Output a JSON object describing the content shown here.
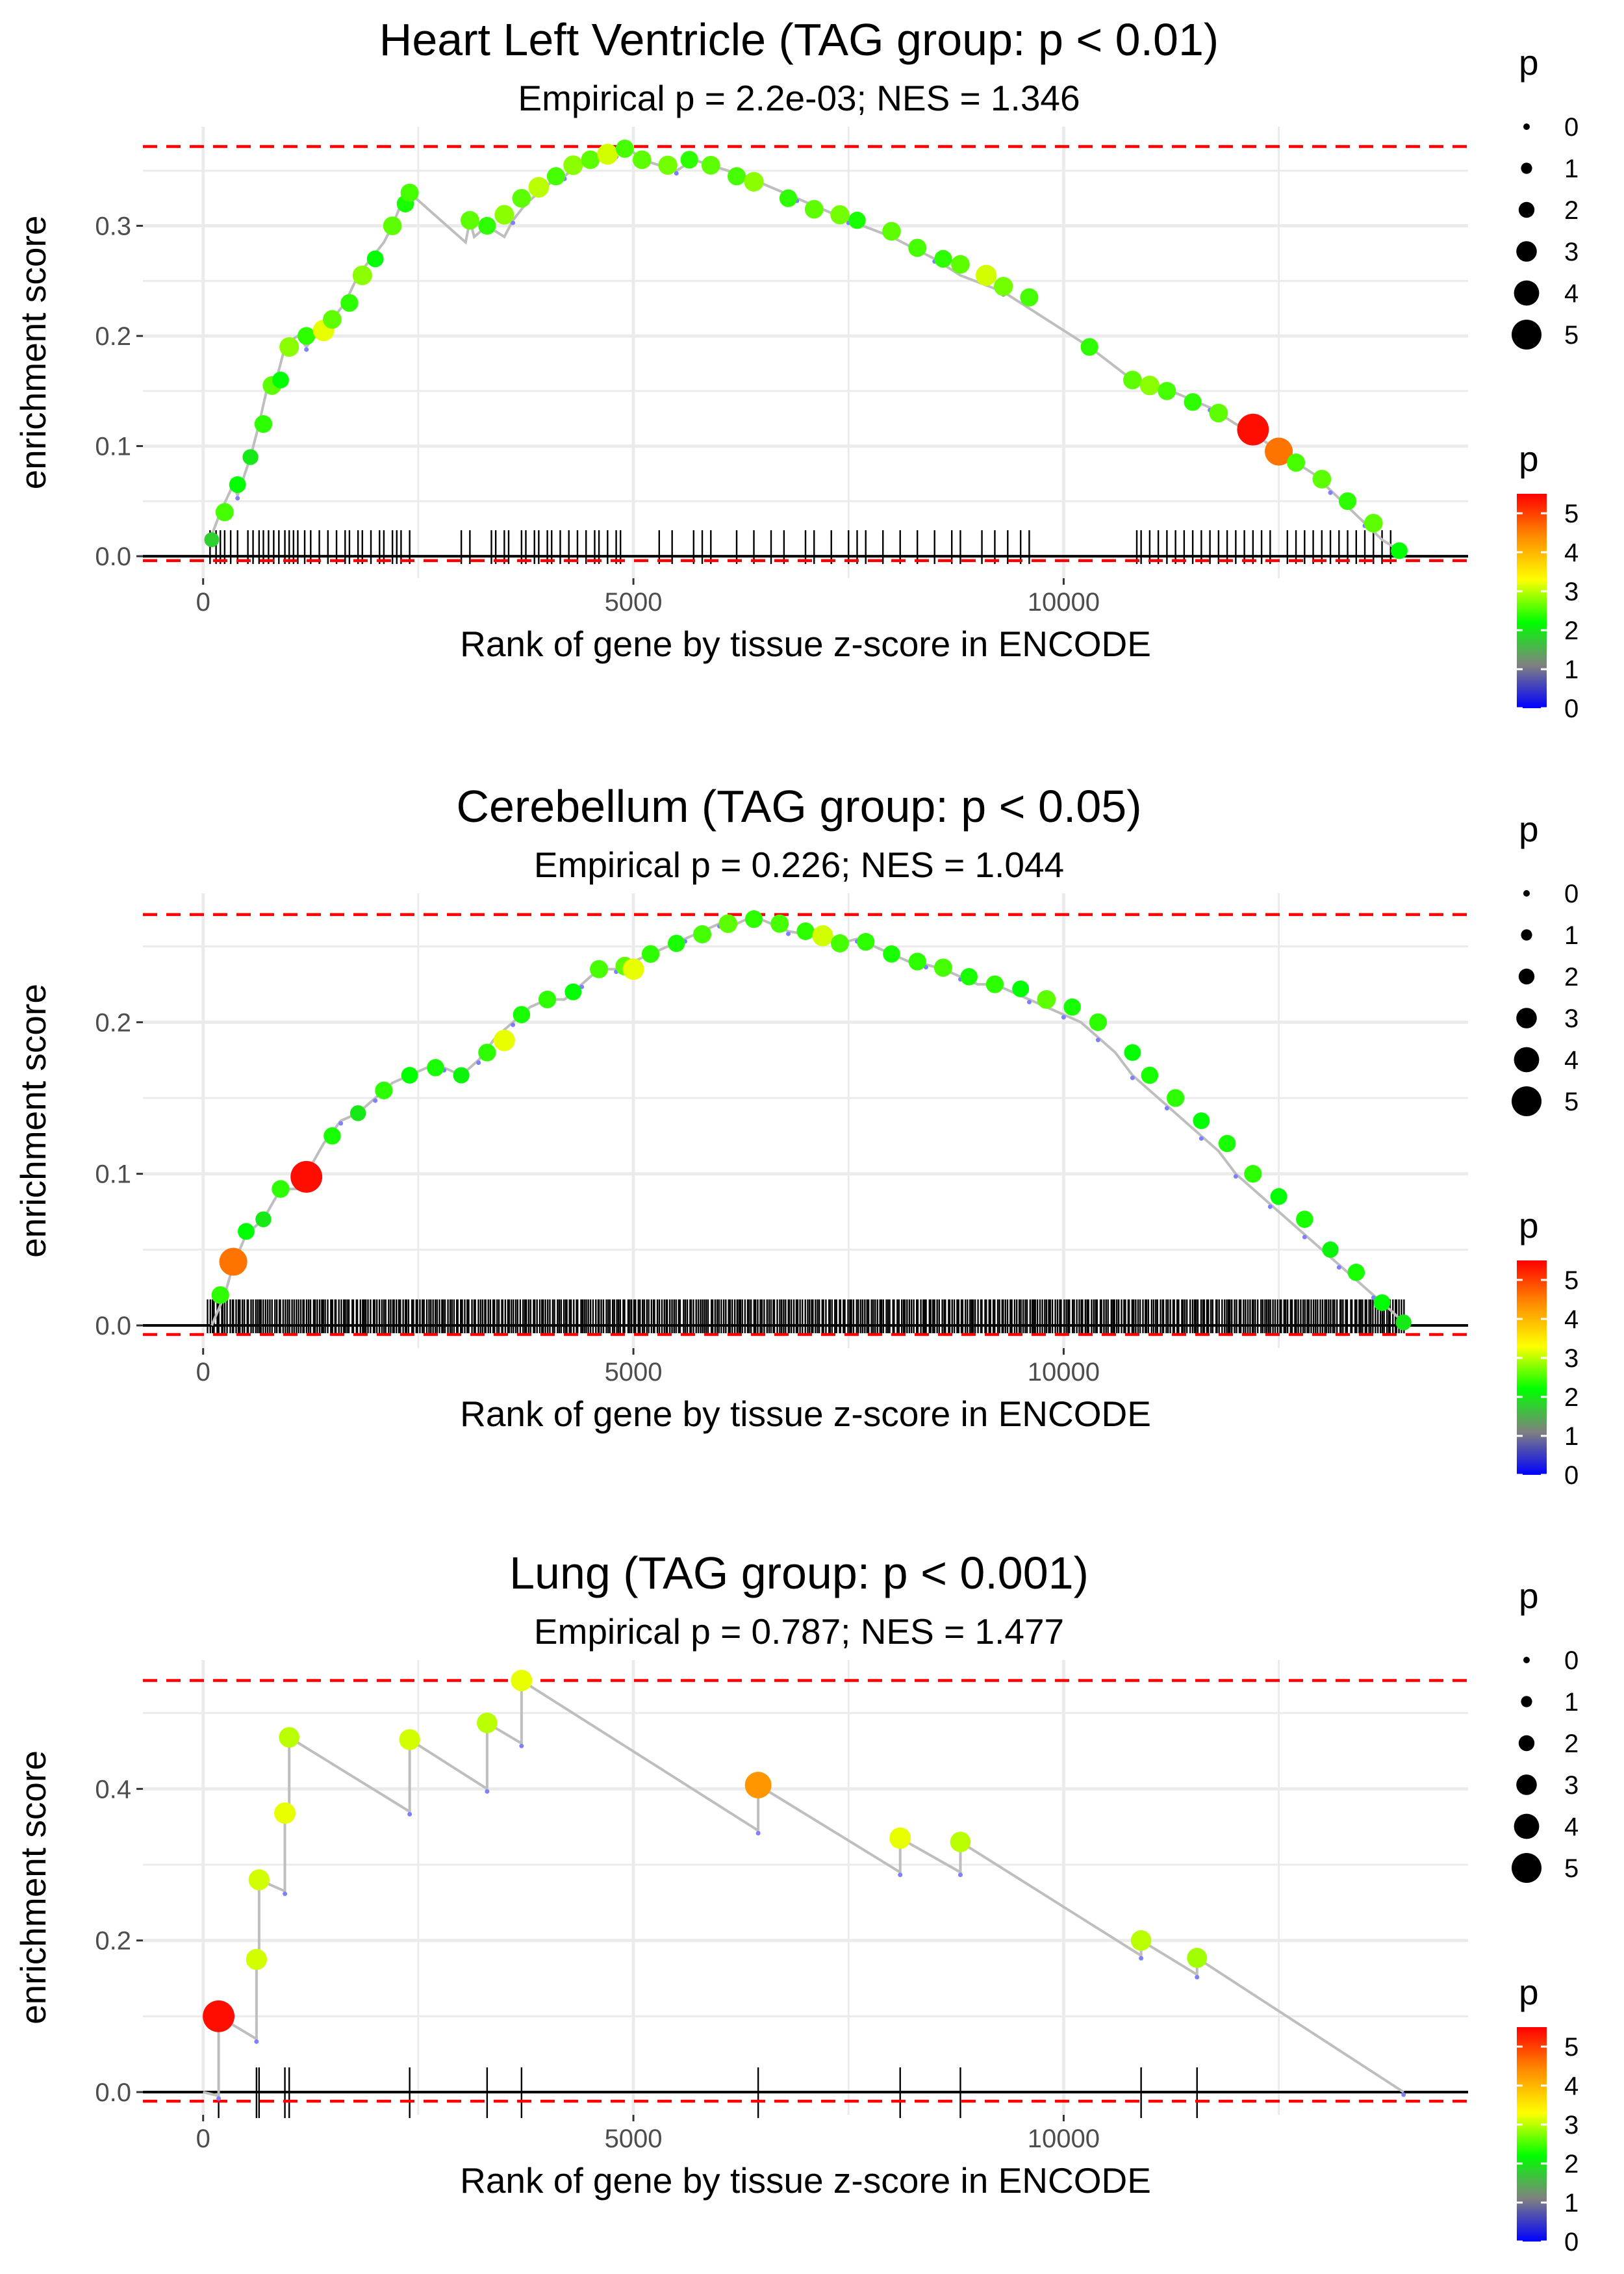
{
  "chart_data": [
    {
      "type": "line",
      "title": "Heart Left Ventricle (TAG group: p < 0.01)",
      "subtitle": "Empirical p = 2.2e-03; NES = 1.346",
      "xlabel": "Rank of gene by tissue z-score in ENCODE",
      "ylabel": "enrichment score",
      "xlim": [
        -700,
        14700
      ],
      "ylim": [
        -0.02,
        0.39
      ],
      "xticks": [
        0,
        5000,
        10000
      ],
      "yticks": [
        0.0,
        0.1,
        0.2,
        0.3
      ],
      "ytick_labels": [
        "0.0",
        "0.1",
        "0.2",
        "0.3"
      ],
      "xtick_labels": [
        "0",
        "5000",
        "10000"
      ],
      "max_es_line": 0.372,
      "min_es_line": -0.004,
      "curve": {
        "x": [
          80,
          200,
          350,
          400,
          550,
          650,
          750,
          850,
          950,
          1000,
          1100,
          1200,
          1300,
          1400,
          1500,
          1650,
          1800,
          1950,
          2100,
          2200,
          2300,
          2400,
          3050,
          3100,
          3150,
          3300,
          3500,
          3600,
          3750,
          3900,
          4050,
          4200,
          4350,
          4500,
          4650,
          4800,
          4950,
          5100,
          5300,
          5500,
          5700,
          5900,
          6100,
          6300,
          6600,
          6900,
          7200,
          7500,
          8000,
          8500,
          8800,
          9300,
          9600,
          10300,
          10800,
          11100,
          11400,
          11700,
          12000,
          12200,
          12500,
          12700,
          12900,
          13100,
          13300,
          13500,
          13700,
          13900
        ],
        "y": [
          0.015,
          0.04,
          0.065,
          0.055,
          0.09,
          0.12,
          0.155,
          0.16,
          0.19,
          0.195,
          0.2,
          0.19,
          0.2,
          0.2,
          0.215,
          0.23,
          0.255,
          0.27,
          0.285,
          0.3,
          0.32,
          0.33,
          0.285,
          0.305,
          0.29,
          0.3,
          0.29,
          0.305,
          0.32,
          0.33,
          0.34,
          0.345,
          0.355,
          0.36,
          0.36,
          0.365,
          0.37,
          0.36,
          0.355,
          0.35,
          0.36,
          0.355,
          0.35,
          0.345,
          0.335,
          0.325,
          0.315,
          0.305,
          0.29,
          0.27,
          0.255,
          0.24,
          0.225,
          0.19,
          0.16,
          0.155,
          0.145,
          0.135,
          0.12,
          0.112,
          0.095,
          0.085,
          0.075,
          0.06,
          0.045,
          0.03,
          0.015,
          0.005
        ]
      },
      "hits": [
        80,
        150,
        200,
        250,
        320,
        400,
        520,
        580,
        650,
        700,
        760,
        820,
        880,
        950,
        1000,
        1050,
        1100,
        1180,
        1250,
        1350,
        1450,
        1550,
        1650,
        1700,
        1800,
        1850,
        1950,
        2050,
        2100,
        2200,
        2250,
        2300,
        2400,
        3000,
        3100,
        3350,
        3400,
        3500,
        3550,
        3700,
        3750,
        3850,
        3900,
        4000,
        4050,
        4150,
        4250,
        4350,
        4450,
        4550,
        4600,
        4700,
        4800,
        4850,
        5300,
        5450,
        5700,
        5800,
        5900,
        6200,
        6400,
        6600,
        6750,
        7000,
        7100,
        7300,
        7500,
        7600,
        7700,
        7900,
        8100,
        8300,
        8500,
        8700,
        8800,
        9050,
        9200,
        9350,
        9500,
        9600,
        10850,
        10900,
        11000,
        11100,
        11200,
        11300,
        11400,
        11500,
        11600,
        11700,
        11800,
        11900,
        12000,
        12100,
        12200,
        12300,
        12400,
        12600,
        12700,
        12800,
        12900,
        13000,
        13100,
        13200,
        13300,
        13400,
        13500,
        13600,
        13700,
        13800
      ],
      "points": {
        "x": [
          100,
          250,
          400,
          550,
          700,
          800,
          900,
          1000,
          1200,
          1400,
          1500,
          1700,
          1850,
          2000,
          2200,
          2350,
          2400,
          3100,
          3300,
          3500,
          3700,
          3900,
          4100,
          4300,
          4500,
          4700,
          4900,
          5100,
          5400,
          5650,
          5900,
          6200,
          6400,
          6800,
          7100,
          7400,
          7600,
          8000,
          8300,
          8600,
          8800,
          9100,
          9300,
          9600,
          10300,
          10800,
          11000,
          11200,
          11500,
          11800,
          12200,
          12500,
          12700,
          13000,
          13300,
          13600,
          13900
        ],
        "y": [
          0.015,
          0.04,
          0.065,
          0.09,
          0.12,
          0.155,
          0.16,
          0.19,
          0.2,
          0.205,
          0.215,
          0.23,
          0.255,
          0.27,
          0.3,
          0.32,
          0.33,
          0.305,
          0.3,
          0.31,
          0.325,
          0.335,
          0.345,
          0.355,
          0.36,
          0.365,
          0.37,
          0.36,
          0.355,
          0.36,
          0.355,
          0.345,
          0.34,
          0.325,
          0.315,
          0.31,
          0.305,
          0.295,
          0.28,
          0.27,
          0.265,
          0.255,
          0.245,
          0.235,
          0.19,
          0.16,
          0.155,
          0.15,
          0.14,
          0.13,
          0.115,
          0.095,
          0.085,
          0.07,
          0.05,
          0.03,
          0.005
        ],
        "p": [
          1.8,
          2.5,
          2.2,
          2.0,
          2.4,
          2.6,
          2.2,
          2.8,
          2.4,
          3.2,
          2.6,
          2.4,
          2.8,
          2.2,
          2.6,
          2.3,
          2.5,
          2.6,
          2.4,
          2.8,
          2.6,
          3.0,
          2.5,
          2.8,
          2.6,
          3.1,
          2.5,
          2.6,
          2.7,
          2.4,
          2.6,
          2.5,
          2.8,
          2.4,
          2.6,
          2.7,
          2.3,
          2.6,
          2.5,
          2.4,
          2.6,
          3.1,
          2.7,
          2.5,
          2.4,
          2.6,
          2.8,
          2.5,
          2.4,
          2.6,
          5.4,
          4.6,
          2.5,
          2.6,
          2.4,
          2.6,
          2.2
        ]
      }
    },
    {
      "type": "line",
      "title": "Cerebellum (TAG group: p < 0.05)",
      "subtitle": "Empirical p = 0.226; NES = 1.044",
      "xlabel": "Rank of gene by tissue z-score in ENCODE",
      "ylabel": "enrichment score",
      "xlim": [
        -700,
        14700
      ],
      "ylim": [
        -0.015,
        0.285
      ],
      "xticks": [
        0,
        5000,
        10000
      ],
      "yticks": [
        0.0,
        0.1,
        0.2
      ],
      "ytick_labels": [
        "0.0",
        "0.1",
        "0.2"
      ],
      "xtick_labels": [
        "0",
        "5000",
        "10000"
      ],
      "max_es_line": 0.271,
      "min_es_line": -0.006,
      "curve": {
        "x": [
          100,
          250,
          350,
          500,
          700,
          900,
          1100,
          1200,
          1400,
          1600,
          1800,
          2000,
          2200,
          2400,
          2600,
          2800,
          3000,
          3200,
          3400,
          3600,
          3800,
          4000,
          4200,
          4400,
          4600,
          4800,
          5000,
          5200,
          5400,
          5600,
          5800,
          6000,
          6200,
          6400,
          6600,
          6800,
          7000,
          7200,
          7400,
          7600,
          7800,
          8000,
          8200,
          8400,
          8600,
          8800,
          9000,
          9200,
          9400,
          9600,
          9800,
          10000,
          10200,
          10400,
          10600,
          10800,
          11000,
          11200,
          11400,
          11600,
          11800,
          12000,
          12200,
          12400,
          12600,
          12800,
          13000,
          13200,
          13400,
          13600,
          13800,
          13950
        ],
        "y": [
          0.0,
          0.02,
          0.04,
          0.06,
          0.07,
          0.09,
          0.09,
          0.1,
          0.12,
          0.135,
          0.14,
          0.15,
          0.16,
          0.165,
          0.17,
          0.17,
          0.165,
          0.175,
          0.19,
          0.2,
          0.21,
          0.215,
          0.215,
          0.225,
          0.235,
          0.235,
          0.24,
          0.245,
          0.25,
          0.255,
          0.26,
          0.265,
          0.265,
          0.27,
          0.265,
          0.26,
          0.258,
          0.255,
          0.252,
          0.255,
          0.25,
          0.245,
          0.24,
          0.238,
          0.235,
          0.23,
          0.225,
          0.225,
          0.22,
          0.215,
          0.21,
          0.205,
          0.2,
          0.19,
          0.18,
          0.165,
          0.155,
          0.145,
          0.135,
          0.125,
          0.115,
          0.1,
          0.09,
          0.08,
          0.07,
          0.06,
          0.05,
          0.04,
          0.03,
          0.02,
          0.01,
          0.002
        ]
      },
      "hits_start": 60,
      "hits_end": 13950,
      "hits_count": 560,
      "points": {
        "x": [
          200,
          350,
          500,
          700,
          900,
          1200,
          1500,
          1800,
          2100,
          2400,
          2700,
          3000,
          3300,
          3500,
          3700,
          4000,
          4300,
          4600,
          4900,
          5000,
          5200,
          5500,
          5800,
          6100,
          6400,
          6700,
          7000,
          7200,
          7400,
          7700,
          8000,
          8300,
          8600,
          8900,
          9200,
          9500,
          9800,
          10100,
          10400,
          10800,
          11000,
          11300,
          11600,
          11900,
          12200,
          12500,
          12800,
          13100,
          13400,
          13700,
          13950
        ],
        "y": [
          0.02,
          0.042,
          0.062,
          0.07,
          0.09,
          0.098,
          0.125,
          0.14,
          0.155,
          0.165,
          0.17,
          0.165,
          0.18,
          0.188,
          0.205,
          0.215,
          0.22,
          0.235,
          0.237,
          0.235,
          0.245,
          0.252,
          0.258,
          0.265,
          0.268,
          0.265,
          0.26,
          0.257,
          0.252,
          0.253,
          0.245,
          0.24,
          0.236,
          0.23,
          0.225,
          0.222,
          0.215,
          0.21,
          0.2,
          0.18,
          0.165,
          0.15,
          0.135,
          0.12,
          0.1,
          0.085,
          0.07,
          0.05,
          0.035,
          0.015,
          0.002
        ],
        "p": [
          2.4,
          4.6,
          2.2,
          2.0,
          2.4,
          5.4,
          2.3,
          2.0,
          2.4,
          2.2,
          2.3,
          2.1,
          2.4,
          3.2,
          2.3,
          2.4,
          2.2,
          2.5,
          2.6,
          3.2,
          2.4,
          2.3,
          2.5,
          2.6,
          2.4,
          2.5,
          2.4,
          3.1,
          2.5,
          2.4,
          2.3,
          2.4,
          2.5,
          2.3,
          2.4,
          2.2,
          2.6,
          2.3,
          2.4,
          2.2,
          2.3,
          2.4,
          2.2,
          2.3,
          2.4,
          2.2,
          2.3,
          2.1,
          2.3,
          2.2,
          2.0
        ]
      }
    },
    {
      "type": "line",
      "title": "Lung (TAG group: p < 0.001)",
      "subtitle": "Empirical p = 0.787; NES = 1.477",
      "xlabel": "Rank of gene by tissue z-score in ENCODE",
      "ylabel": "enrichment score",
      "xlim": [
        -700,
        14700
      ],
      "ylim": [
        -0.03,
        0.57
      ],
      "xticks": [
        0,
        5000,
        10000
      ],
      "yticks": [
        0.0,
        0.2,
        0.4
      ],
      "ytick_labels": [
        "0.0",
        "0.2",
        "0.4"
      ],
      "xtick_labels": [
        "0",
        "5000",
        "10000"
      ],
      "max_es_line": 0.543,
      "min_es_line": -0.012,
      "curve": {
        "x": [
          0,
          180,
          180,
          620,
          620,
          650,
          650,
          950,
          950,
          1000,
          1000,
          2400,
          2400,
          3300,
          3300,
          3700,
          3700,
          6450,
          6450,
          8100,
          8100,
          8800,
          8800,
          10900,
          10900,
          11550,
          11550,
          13950
        ],
        "y": [
          0.0,
          -0.005,
          0.1,
          0.07,
          0.175,
          0.175,
          0.28,
          0.265,
          0.368,
          0.365,
          0.468,
          0.37,
          0.465,
          0.4,
          0.487,
          0.46,
          0.543,
          0.345,
          0.405,
          0.29,
          0.335,
          0.29,
          0.33,
          0.18,
          0.2,
          0.155,
          0.177,
          0.0
        ]
      },
      "hits": [
        180,
        620,
        650,
        950,
        1000,
        2400,
        3300,
        3700,
        6450,
        8100,
        8800,
        10900,
        11550
      ],
      "points": {
        "x": [
          180,
          620,
          650,
          950,
          1000,
          2400,
          3300,
          3700,
          6450,
          8100,
          8800,
          10900,
          11550
        ],
        "y": [
          0.1,
          0.175,
          0.28,
          0.368,
          0.468,
          0.465,
          0.487,
          0.543,
          0.405,
          0.335,
          0.33,
          0.2,
          0.177
        ],
        "p": [
          5.4,
          3.1,
          3.1,
          3.2,
          3.0,
          3.1,
          3.0,
          3.2,
          4.3,
          3.2,
          3.0,
          3.0,
          2.9
        ]
      }
    }
  ],
  "legend": {
    "size_title": "p",
    "size_labels": [
      "0",
      "1",
      "2",
      "3",
      "4",
      "5"
    ],
    "color_title": "p",
    "color_labels": [
      "5",
      "4",
      "3",
      "2",
      "1",
      "0"
    ]
  },
  "colors": {
    "curve": "#bebebe",
    "hit_tick": "#000000",
    "baseline": "#000000",
    "es_bound": "#ff0000",
    "gridline": "#ebebeb",
    "colorscale": [
      "#0000ff",
      "#808080",
      "#00ff00",
      "#ffff00",
      "#ff8c00",
      "#ff0000"
    ]
  }
}
